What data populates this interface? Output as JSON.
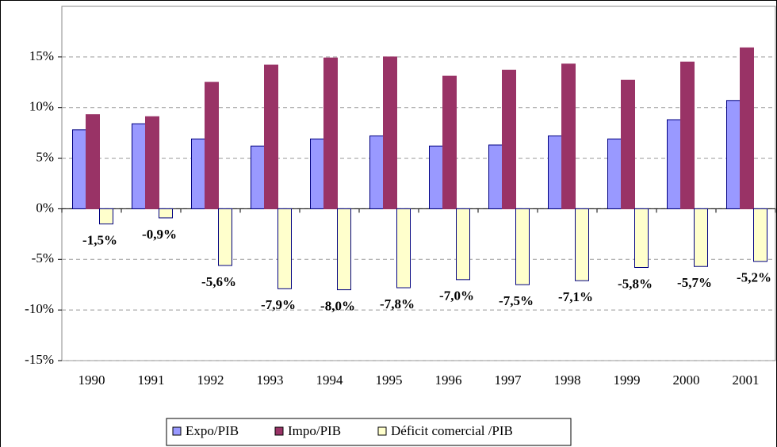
{
  "chart_data": {
    "type": "bar",
    "categories": [
      "1990",
      "1991",
      "1992",
      "1993",
      "1994",
      "1995",
      "1996",
      "1997",
      "1998",
      "1999",
      "2000",
      "2001"
    ],
    "series": [
      {
        "name": "Expo/PIB",
        "color": "#9999ff",
        "values": [
          7.8,
          8.4,
          6.9,
          6.2,
          6.9,
          7.2,
          6.2,
          6.3,
          7.2,
          6.9,
          8.8,
          10.7
        ]
      },
      {
        "name": "Impo/PIB",
        "color": "#993366",
        "values": [
          9.3,
          9.1,
          12.5,
          14.2,
          14.9,
          15.0,
          13.1,
          13.7,
          14.3,
          12.7,
          14.5,
          15.9
        ]
      },
      {
        "name": "Déficit comercial /PIB",
        "color": "#ffffcc",
        "values": [
          -1.5,
          -0.9,
          -5.6,
          -7.9,
          -8.0,
          -7.8,
          -7.0,
          -7.5,
          -7.1,
          -5.8,
          -5.7,
          -5.2
        ],
        "value_labels": [
          "-1,5%",
          "-0,9%",
          "-5,6%",
          "-7,9%",
          "-8,0%",
          "-7,8%",
          "-7,0%",
          "-7,5%",
          "-7,1%",
          "-5,8%",
          "-5,7%",
          "-5,2%"
        ]
      }
    ],
    "ylim": [
      -15,
      20
    ],
    "yticks": [
      {
        "value": -15,
        "label": "-15%"
      },
      {
        "value": -10,
        "label": "-10%"
      },
      {
        "value": -5,
        "label": "-5%"
      },
      {
        "value": 0,
        "label": "0%"
      },
      {
        "value": 5,
        "label": "5%"
      },
      {
        "value": 10,
        "label": "10%"
      },
      {
        "value": 15,
        "label": "15%"
      }
    ],
    "grid": true,
    "legend": "bottom"
  }
}
